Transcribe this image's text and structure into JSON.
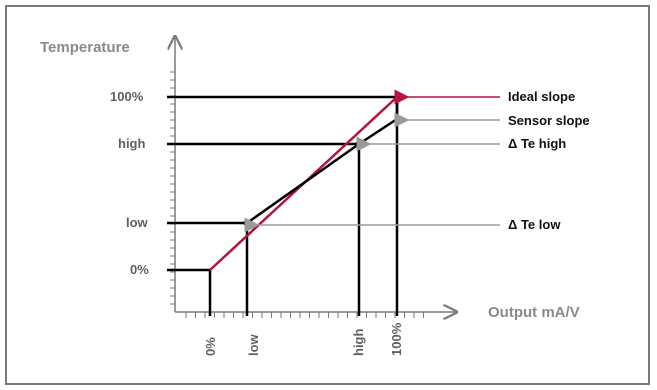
{
  "chart_data": {
    "type": "line",
    "xlabel": "Output mA/V",
    "ylabel": "Temperature",
    "x_ticks": [
      "0%",
      "low",
      "high",
      "100%"
    ],
    "y_ticks": [
      "0%",
      "low",
      "high",
      "100%"
    ],
    "series": [
      {
        "name": "Ideal slope",
        "points": [
          [
            "0%",
            "0%"
          ],
          [
            "100%",
            "100%"
          ]
        ]
      },
      {
        "name": "Sensor slope",
        "points": [
          [
            "0%",
            "0%"
          ],
          [
            "low",
            "low"
          ],
          [
            "high",
            "high"
          ],
          [
            "100%",
            "100%"
          ]
        ]
      }
    ],
    "annotations": {
      "ideal_slope": "Ideal slope",
      "sensor_slope": "Sensor slope",
      "delta_high": "Δ Te high",
      "delta_low": "Δ Te low"
    }
  },
  "colors": {
    "ideal": "#b5153c",
    "sensor": "#000000",
    "axis": "#7a7a7a",
    "pointer": "#9a9a9a"
  }
}
